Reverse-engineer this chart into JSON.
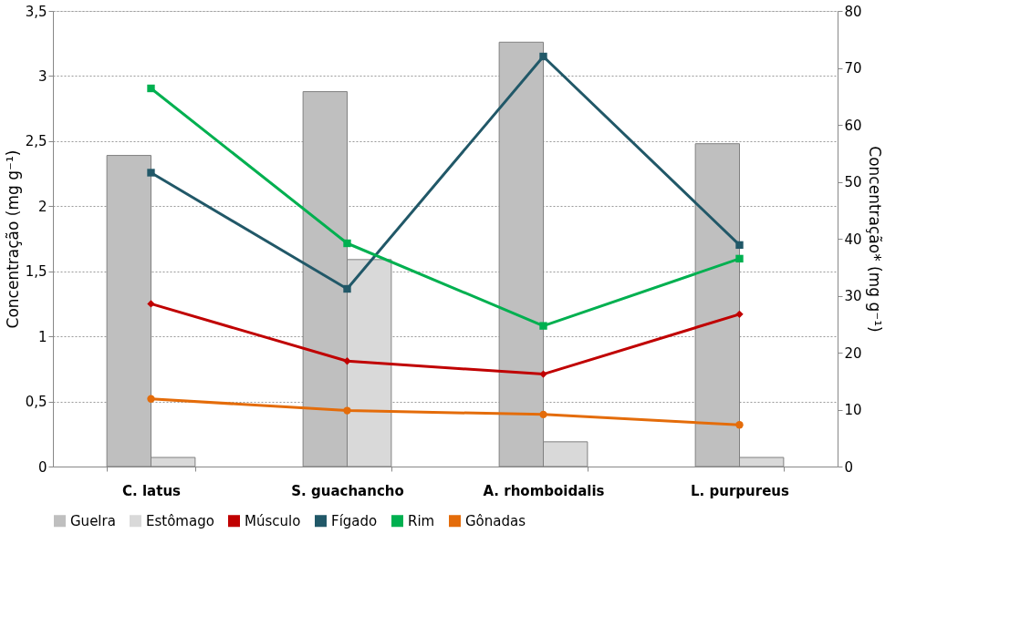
{
  "chart_data": {
    "type": "bar",
    "ylabel": "Concentração (mg g⁻¹)",
    "y2label": "Concentração* (mg g⁻¹)",
    "categories": [
      "C. latus",
      "S. guachancho",
      "A. rhomboidalis",
      "L. purpureus"
    ],
    "ylim": [
      0,
      3.5
    ],
    "yticks": [
      0,
      {
        "value": 0.5,
        "label": "0,5"
      },
      1,
      {
        "value": 1.5,
        "label": "1,5"
      },
      2,
      {
        "value": 2.5,
        "label": "2,5"
      },
      3,
      {
        "value": 3.5,
        "label": "3,5"
      }
    ],
    "y2lim": [
      0,
      80
    ],
    "y2ticks": [
      0,
      10,
      20,
      30,
      40,
      50,
      60,
      70,
      80
    ],
    "grid": "y",
    "legend": "bottom",
    "series": [
      {
        "name": "Guelra",
        "color": "#bfbfbf",
        "values": [
          2.39,
          2.88,
          3.26,
          2.48
        ]
      },
      {
        "name": "Estômago",
        "color": "#d9d9d9",
        "values": [
          0.07,
          1.59,
          0.19,
          0.07
        ]
      },
      {
        "name": "Músculo",
        "type": "line",
        "marker": "diamond",
        "color": "#c00000",
        "values": [
          1.25,
          0.81,
          0.71,
          1.17
        ]
      },
      {
        "name": "Fígado",
        "type": "line",
        "axis": "y2",
        "marker": "square",
        "color": "#215868",
        "values": [
          51.6,
          31.2,
          72.0,
          38.9
        ]
      },
      {
        "name": "Rim",
        "type": "line",
        "axis": "y2",
        "marker": "square",
        "color": "#00b050",
        "values": [
          66.4,
          39.2,
          24.7,
          36.5
        ]
      },
      {
        "name": "Gônadas",
        "type": "line",
        "marker": "circle",
        "color": "#e46c0a",
        "values": [
          0.52,
          0.43,
          0.4,
          0.32
        ]
      }
    ]
  }
}
